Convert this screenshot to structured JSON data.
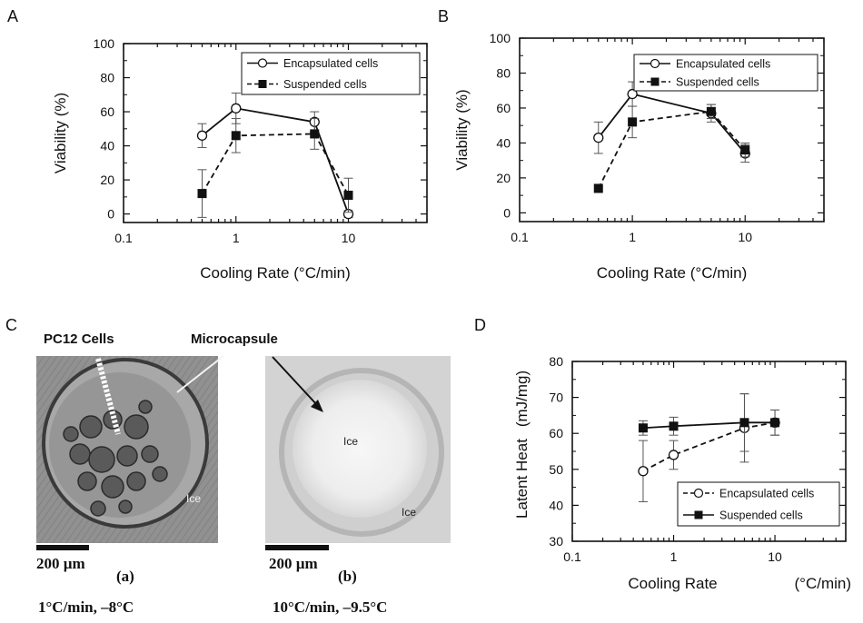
{
  "panels": {
    "A": "A",
    "B": "B",
    "C": "C",
    "D": "D"
  },
  "chart_data": [
    {
      "id": "A",
      "type": "line",
      "xscale": "log",
      "xlim": [
        0.1,
        50
      ],
      "ylim": [
        -5,
        100
      ],
      "x_ticks": [
        0.1,
        1,
        10
      ],
      "x_tick_labels": [
        "0.1",
        "1",
        "10"
      ],
      "y_ticks": [
        0,
        20,
        40,
        60,
        80,
        100
      ],
      "y_tick_labels": [
        "0",
        "20",
        "40",
        "60",
        "80",
        "100"
      ],
      "xlabel": "Cooling Rate (°C/min)",
      "ylabel": "Viability (%)",
      "legend_position": "top-right",
      "series": [
        {
          "name": "Encapsulated cells",
          "marker": "open-circle",
          "line": "solid",
          "x": [
            0.5,
            1,
            5,
            10
          ],
          "y": [
            46,
            62,
            54,
            0
          ],
          "err": [
            7,
            9,
            6,
            2
          ]
        },
        {
          "name": "Suspended cells",
          "marker": "filled-square",
          "line": "dashed",
          "x": [
            0.5,
            1,
            5,
            10
          ],
          "y": [
            12,
            46,
            47,
            11
          ],
          "err": [
            14,
            10,
            9,
            10
          ]
        }
      ]
    },
    {
      "id": "B",
      "type": "line",
      "xscale": "log",
      "xlim": [
        0.1,
        50
      ],
      "ylim": [
        -5,
        100
      ],
      "x_ticks": [
        0.1,
        1,
        10
      ],
      "x_tick_labels": [
        "0.1",
        "1",
        "10"
      ],
      "y_ticks": [
        0,
        20,
        40,
        60,
        80,
        100
      ],
      "y_tick_labels": [
        "0",
        "20",
        "40",
        "60",
        "80",
        "100"
      ],
      "xlabel": "Cooling Rate (°C/min)",
      "ylabel": "Viability (%)",
      "legend_position": "top-right",
      "series": [
        {
          "name": "Encapsulated cells",
          "marker": "open-circle",
          "line": "solid",
          "x": [
            0.5,
            1,
            5,
            10
          ],
          "y": [
            43,
            68,
            57,
            34
          ],
          "err": [
            9,
            7,
            5,
            5
          ]
        },
        {
          "name": "Suspended cells",
          "marker": "filled-square",
          "line": "dashed",
          "x": [
            0.5,
            1,
            5,
            10
          ],
          "y": [
            14,
            52,
            58,
            36
          ],
          "err": [
            0,
            9,
            4,
            4
          ]
        }
      ]
    },
    {
      "id": "D",
      "type": "line",
      "xscale": "log",
      "xlim": [
        0.1,
        50
      ],
      "ylim": [
        30,
        80
      ],
      "x_ticks": [
        0.1,
        1,
        10
      ],
      "x_tick_labels": [
        "0.1",
        "1",
        "10"
      ],
      "y_ticks": [
        30,
        40,
        50,
        60,
        70,
        80
      ],
      "y_tick_labels": [
        "30",
        "40",
        "50",
        "60",
        "70",
        "80"
      ],
      "xlabel": "Cooling Rate",
      "xlabel_unit": "(°C/min)",
      "ylabel": "Latent Heat",
      "ylabel_unit": "(mJ/mg)",
      "legend_position": "bottom-right",
      "series": [
        {
          "name": "Encapsulated cells",
          "marker": "open-circle",
          "line": "dashed",
          "x": [
            0.5,
            1,
            5,
            10
          ],
          "y": [
            49.5,
            54,
            61.5,
            63
          ],
          "err": [
            8.5,
            4,
            9.5,
            3.5
          ]
        },
        {
          "name": "Suspended cells",
          "marker": "filled-square",
          "line": "solid",
          "x": [
            0.5,
            1,
            5,
            10
          ],
          "y": [
            61.5,
            62,
            63,
            63
          ],
          "err": [
            2,
            2.5,
            8,
            3.5
          ]
        }
      ]
    }
  ],
  "micrographs": {
    "a": {
      "label_cells": "PC12 Cells",
      "ice": "Ice",
      "scale": "200 µm",
      "panel": "(a)",
      "condition": "1°C/min, –8°C"
    },
    "b": {
      "label_capsule": "Microcapsule",
      "ice_center": "Ice",
      "ice_corner": "Ice",
      "scale": "200 µm",
      "panel": "(b)",
      "condition": "10°C/min, –9.5°C"
    }
  }
}
